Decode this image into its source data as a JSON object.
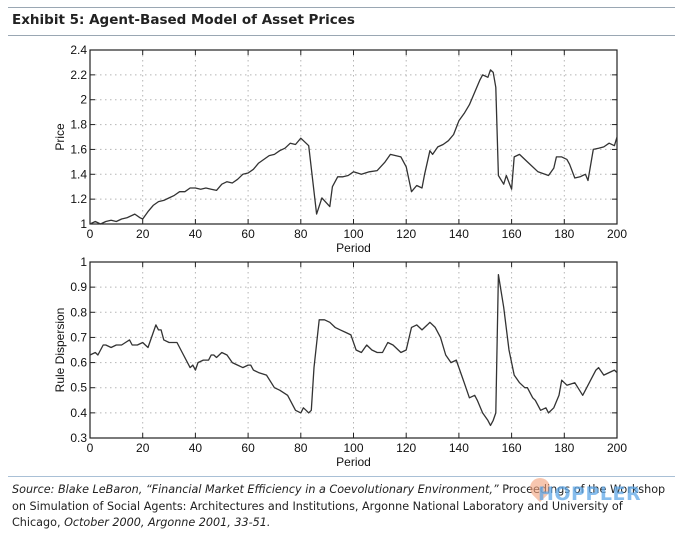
{
  "header": {
    "title": "Exhibit 5: Agent-Based Model of Asset Prices"
  },
  "footer": {
    "source_italic": "Source: Blake LeBaron, “Financial Market Efficiency in a Coevolutionary Environment,”",
    "source_plain": " Proceedings of the Workshop on Simulation of Social Agents: Architectures and Institutions, Argonne National Laboratory and University of Chicago, ",
    "source_italic2": "October 2000, Argonne 2001, 33-51."
  },
  "watermark": "HOPPLER",
  "chart_data": [
    {
      "type": "line",
      "title": "",
      "xlabel": "Period",
      "ylabel": "Price",
      "xlim": [
        0,
        200
      ],
      "ylim": [
        1,
        2.4
      ],
      "xticks": [
        0,
        20,
        40,
        60,
        80,
        100,
        120,
        140,
        160,
        180,
        200
      ],
      "yticks": [
        1,
        1.2,
        1.4,
        1.6,
        1.8,
        2,
        2.2,
        2.4
      ],
      "ytick_labels": [
        "1",
        "1.2",
        "1.4",
        "1.6",
        "1.8",
        "2",
        "2.2",
        "2.4"
      ],
      "grid": true,
      "series": [
        {
          "name": "Price",
          "x": [
            0,
            2,
            4,
            6,
            8,
            10,
            12,
            14,
            17,
            19,
            20,
            22,
            24,
            26,
            28,
            30,
            32,
            34,
            36,
            38,
            40,
            42,
            44,
            46,
            48,
            50,
            52,
            54,
            56,
            58,
            60,
            62,
            64,
            66,
            68,
            70,
            72,
            74,
            76,
            78,
            80,
            83,
            86,
            88,
            91,
            92,
            94,
            96,
            98,
            100,
            103,
            106,
            109,
            112,
            114,
            118,
            120,
            122,
            124,
            126,
            127,
            129,
            130,
            132,
            134,
            136,
            138,
            140,
            142,
            144,
            146,
            148,
            149,
            151,
            152,
            153,
            154,
            155,
            157,
            158,
            160,
            161,
            163,
            166,
            170,
            174,
            176,
            177,
            179,
            181,
            182,
            184,
            186,
            187,
            188,
            189,
            191,
            193,
            195,
            197,
            199,
            200
          ],
          "y": [
            1.0,
            1.02,
            1.0,
            1.02,
            1.03,
            1.02,
            1.04,
            1.05,
            1.08,
            1.05,
            1.04,
            1.1,
            1.15,
            1.18,
            1.19,
            1.21,
            1.23,
            1.26,
            1.26,
            1.29,
            1.29,
            1.28,
            1.29,
            1.28,
            1.27,
            1.32,
            1.34,
            1.33,
            1.36,
            1.4,
            1.41,
            1.44,
            1.49,
            1.52,
            1.55,
            1.56,
            1.59,
            1.61,
            1.65,
            1.64,
            1.69,
            1.63,
            1.08,
            1.21,
            1.14,
            1.3,
            1.38,
            1.38,
            1.39,
            1.42,
            1.4,
            1.42,
            1.43,
            1.5,
            1.56,
            1.54,
            1.46,
            1.26,
            1.31,
            1.29,
            1.4,
            1.59,
            1.56,
            1.62,
            1.64,
            1.67,
            1.72,
            1.83,
            1.89,
            1.96,
            2.06,
            2.16,
            2.2,
            2.18,
            2.24,
            2.22,
            2.1,
            1.39,
            1.32,
            1.39,
            1.28,
            1.54,
            1.56,
            1.5,
            1.42,
            1.39,
            1.45,
            1.54,
            1.54,
            1.52,
            1.48,
            1.37,
            1.38,
            1.39,
            1.4,
            1.35,
            1.6,
            1.61,
            1.62,
            1.65,
            1.63,
            1.7
          ]
        }
      ]
    },
    {
      "type": "line",
      "title": "",
      "xlabel": "Period",
      "ylabel": "Rule Dispersion",
      "xlim": [
        0,
        200
      ],
      "ylim": [
        0.3,
        1
      ],
      "xticks": [
        0,
        20,
        40,
        60,
        80,
        100,
        120,
        140,
        160,
        180,
        200
      ],
      "yticks": [
        0.3,
        0.4,
        0.5,
        0.6,
        0.7,
        0.8,
        0.9,
        1
      ],
      "ytick_labels": [
        "0.3",
        "0.4",
        "0.5",
        "0.6",
        "0.7",
        "0.8",
        "0.9",
        "1"
      ],
      "grid": true,
      "series": [
        {
          "name": "Rule Dispersion",
          "x": [
            0,
            2,
            3,
            5,
            6,
            8,
            10,
            12,
            15,
            16,
            18,
            20,
            21,
            22,
            25,
            26,
            27,
            28,
            30,
            33,
            35,
            38,
            39,
            40,
            41,
            43,
            45,
            46,
            47,
            48,
            50,
            52,
            54,
            56,
            58,
            60,
            61,
            62,
            64,
            67,
            70,
            72,
            75,
            78,
            80,
            81,
            82,
            83,
            84,
            85,
            87,
            89,
            91,
            93,
            95,
            97,
            99,
            101,
            103,
            105,
            107,
            109,
            111,
            113,
            115,
            118,
            120,
            122,
            124,
            126,
            128,
            129,
            131,
            133,
            135,
            137,
            139,
            140,
            142,
            144,
            146,
            147,
            149,
            151,
            152,
            153,
            154,
            155,
            157,
            159,
            161,
            163,
            165,
            166,
            168,
            169,
            171,
            173,
            174,
            176,
            178,
            179,
            181,
            184,
            187,
            188,
            190,
            192,
            193,
            195,
            197,
            199,
            200
          ],
          "y": [
            0.63,
            0.64,
            0.63,
            0.67,
            0.67,
            0.66,
            0.67,
            0.67,
            0.69,
            0.67,
            0.67,
            0.68,
            0.67,
            0.66,
            0.75,
            0.73,
            0.73,
            0.69,
            0.68,
            0.68,
            0.64,
            0.58,
            0.59,
            0.57,
            0.6,
            0.61,
            0.61,
            0.63,
            0.63,
            0.62,
            0.64,
            0.63,
            0.6,
            0.59,
            0.58,
            0.59,
            0.59,
            0.57,
            0.56,
            0.55,
            0.5,
            0.49,
            0.47,
            0.41,
            0.4,
            0.42,
            0.41,
            0.4,
            0.41,
            0.58,
            0.77,
            0.77,
            0.76,
            0.74,
            0.73,
            0.72,
            0.71,
            0.65,
            0.64,
            0.67,
            0.65,
            0.64,
            0.64,
            0.68,
            0.67,
            0.64,
            0.65,
            0.74,
            0.75,
            0.73,
            0.75,
            0.76,
            0.74,
            0.7,
            0.63,
            0.6,
            0.61,
            0.58,
            0.52,
            0.46,
            0.47,
            0.45,
            0.4,
            0.37,
            0.35,
            0.37,
            0.4,
            0.95,
            0.82,
            0.65,
            0.55,
            0.52,
            0.5,
            0.5,
            0.46,
            0.45,
            0.41,
            0.42,
            0.4,
            0.42,
            0.47,
            0.53,
            0.51,
            0.52,
            0.47,
            0.49,
            0.53,
            0.57,
            0.58,
            0.55,
            0.56,
            0.57,
            0.56
          ]
        }
      ]
    }
  ]
}
